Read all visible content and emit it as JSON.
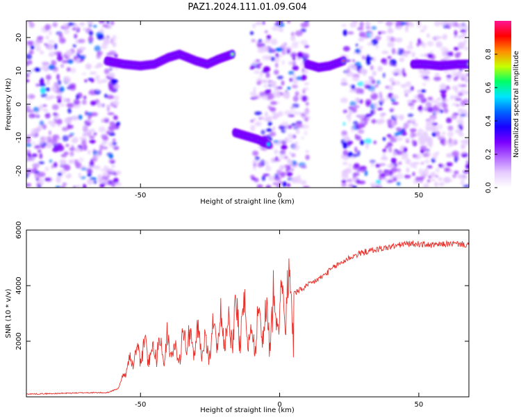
{
  "title": "PAZ1.2024.111.01.09.G04",
  "colors": {
    "line": "#e8302a",
    "colormap": [
      "#ffffff",
      "#e6ccff",
      "#b266ff",
      "#7a00ff",
      "#1a00ff",
      "#0066ff",
      "#00e5ff",
      "#00ff66",
      "#c8ff00",
      "#ff8c00",
      "#ff0000",
      "#ff1493"
    ]
  },
  "chart_data": [
    {
      "type": "heatmap",
      "xlabel": "Height of straight line (km)",
      "ylabel": "Frequency (Hz)",
      "xlim": [
        -91,
        68
      ],
      "ylim": [
        -25,
        25
      ],
      "xticks": [
        -50,
        0,
        50
      ],
      "yticks": [
        -20,
        -10,
        0,
        10,
        20
      ],
      "colorbar": {
        "label": "Normalized spectral amplitude",
        "range": [
          0,
          1
        ],
        "ticks": [
          "0.0",
          "0.2",
          "0.4",
          "0.6",
          "0.8"
        ]
      },
      "traces": [
        {
          "x_start": -63,
          "x_end": -15,
          "points": [
            [
              -62,
              13
            ],
            [
              -56,
              12
            ],
            [
              -50,
              11.5
            ],
            [
              -45,
              12
            ],
            [
              -40,
              14
            ],
            [
              -36,
              15
            ],
            [
              -30,
              13
            ],
            [
              -26,
              12
            ],
            [
              -22,
              13.5
            ],
            [
              -17,
              15
            ]
          ]
        },
        {
          "x_start": -17,
          "x_end": -2,
          "points": [
            [
              -16,
              -8.5
            ],
            [
              -12,
              -9.5
            ],
            [
              -8,
              -10.5
            ],
            [
              -4,
              -12
            ]
          ]
        },
        {
          "x_start": 10,
          "x_end": 24,
          "points": [
            [
              10,
              12
            ],
            [
              14,
              11
            ],
            [
              18,
              11.5
            ],
            [
              23,
              13
            ]
          ]
        },
        {
          "x_start": 48,
          "x_end": 68,
          "points": [
            [
              48,
              12
            ],
            [
              52,
              12
            ],
            [
              58,
              11.5
            ],
            [
              64,
              12
            ],
            [
              68,
              12
            ]
          ]
        }
      ],
      "noise_bands": [
        {
          "x_start": -91,
          "x_end": -58,
          "level": 0.35
        },
        {
          "x_start": -10,
          "x_end": 10,
          "level": 0.3
        },
        {
          "x_start": 23,
          "x_end": 45,
          "level": 0.35
        },
        {
          "x_start": 45,
          "x_end": 68,
          "level": 0.25
        }
      ]
    },
    {
      "type": "line",
      "xlabel": "Height of straight line (km)",
      "ylabel": "SNR (10 * v/v)",
      "xlim": [
        -91,
        68
      ],
      "ylim": [
        0,
        6000
      ],
      "xticks": [
        -50,
        0,
        50
      ],
      "yticks": [
        2000,
        4000,
        6000
      ],
      "series": [
        {
          "x": [
            -91,
            -80,
            -70,
            -62,
            -58,
            -56,
            -54,
            -52,
            -50,
            -48,
            -46,
            -44,
            -42,
            -40,
            -38,
            -36,
            -34,
            -32,
            -30,
            -28,
            -26,
            -24,
            -22,
            -20,
            -18,
            -16,
            -14,
            -12,
            -10,
            -8,
            -6,
            -4,
            -2,
            0,
            5,
            10,
            15,
            20,
            25,
            30,
            35,
            40,
            45,
            50,
            55,
            60,
            65,
            68
          ],
          "values": [
            100,
            120,
            150,
            150,
            300,
            800,
            1200,
            1500,
            1600,
            1700,
            1500,
            1900,
            1600,
            1800,
            1600,
            1500,
            2200,
            1800,
            2000,
            2100,
            1600,
            2300,
            2200,
            2500,
            2400,
            2800,
            2700,
            2700,
            2000,
            2600,
            2500,
            2700,
            3000,
            3300,
            3700,
            4000,
            4300,
            4700,
            5000,
            5200,
            5300,
            5400,
            5500,
            5500,
            5450,
            5500,
            5500,
            5450
          ]
        }
      ]
    }
  ]
}
